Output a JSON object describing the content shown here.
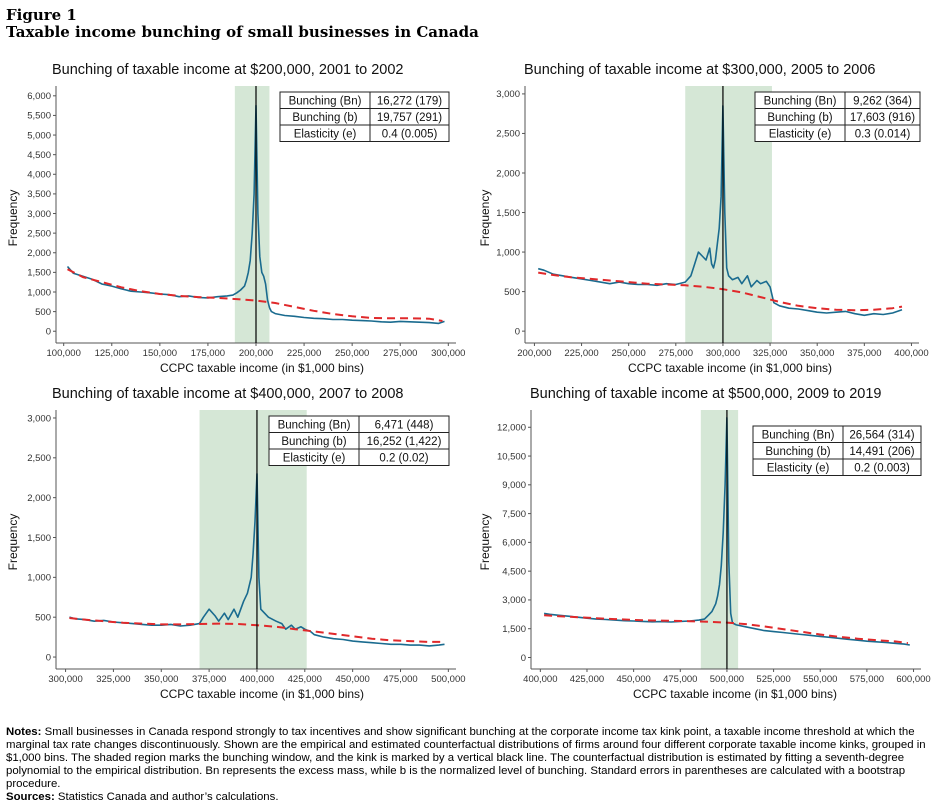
{
  "figure": {
    "label": "Figure 1",
    "title": "Taxable income bunching  of small businesses in Canada"
  },
  "notes": {
    "label": "Notes:",
    "text": "Small businesses in Canada respond strongly to tax incentives and show significant bunching at the corporate income tax kink point, a taxable income threshold at which the marginal tax rate changes discontinuously. Shown are the empirical and estimated counterfactual distributions of firms around four different corporate taxable income kinks, grouped in $1,000 bins. The shaded region marks the bunching window, and the kink is marked by a vertical black line. The counterfactual distribution is estimated by fitting a seventh-degree polynomial to the empirical distribution. Bn represents the excess mass, while b is the normalized level of bunching. Standard errors in parentheses are calculated with a bootstrap procedure."
  },
  "sources": {
    "label": "Sources:",
    "text": "Statistics Canada and author’s calculations."
  },
  "colors": {
    "empirical": "#1a6b8f",
    "counterfactual": "#e0292b",
    "window": "#d5e7d6",
    "kink": "#000000"
  },
  "chart_data": [
    {
      "type": "line",
      "title": "Bunching of taxable income at $200,000, 2001 to 2002",
      "xlabel": "CCPC taxable income (in $1,000 bins)",
      "ylabel": "Frequency",
      "xlim": [
        96000,
        304000
      ],
      "ylim": [
        -300,
        6250
      ],
      "xticks": [
        100000,
        125000,
        150000,
        175000,
        200000,
        225000,
        250000,
        275000,
        300000
      ],
      "xtick_labels": [
        "100,000",
        "125,000",
        "150,000",
        "175,000",
        "200,000",
        "225,000",
        "250,000",
        "275,000",
        "300,000"
      ],
      "yticks": [
        0,
        500,
        1000,
        1500,
        2000,
        2500,
        3000,
        3500,
        4000,
        4500,
        5000,
        5500,
        6000
      ],
      "ytick_labels": [
        "0",
        "500",
        "1,000",
        "1,500",
        "2,000",
        "2,500",
        "3,000",
        "3,500",
        "4,000",
        "4,500",
        "5,000",
        "5,500",
        "6,000"
      ],
      "kink": 200000,
      "window": [
        189000,
        207000
      ],
      "grid": false,
      "series": [
        {
          "style": "empirical",
          "x": [
            102000,
            105000,
            110000,
            115000,
            120000,
            125000,
            130000,
            135000,
            140000,
            145000,
            150000,
            155000,
            160000,
            165000,
            170000,
            175000,
            180000,
            185000,
            188000,
            190000,
            192000,
            194000,
            195000,
            196000,
            197000,
            198000,
            199000,
            200000,
            201000,
            202000,
            203000,
            204000,
            205000,
            206000,
            207000,
            208000,
            210000,
            215000,
            220000,
            225000,
            230000,
            235000,
            240000,
            245000,
            250000,
            255000,
            260000,
            265000,
            270000,
            275000,
            280000,
            285000,
            290000,
            295000,
            298000
          ],
          "y": [
            1650,
            1480,
            1400,
            1320,
            1200,
            1150,
            1080,
            1020,
            1000,
            980,
            950,
            930,
            880,
            900,
            860,
            850,
            880,
            900,
            920,
            980,
            1050,
            1150,
            1300,
            1500,
            1800,
            2500,
            3500,
            5750,
            3000,
            1900,
            1500,
            1400,
            1200,
            800,
            600,
            500,
            450,
            400,
            380,
            350,
            330,
            320,
            300,
            300,
            280,
            270,
            260,
            240,
            230,
            250,
            240,
            230,
            220,
            200,
            250
          ],
          "stroke": "#1a6b8f"
        },
        {
          "style": "counterfactual",
          "x": [
            102000,
            110000,
            120000,
            130000,
            140000,
            150000,
            160000,
            170000,
            180000,
            190000,
            200000,
            210000,
            220000,
            230000,
            240000,
            250000,
            260000,
            270000,
            280000,
            290000,
            297000
          ],
          "y": [
            1580,
            1380,
            1250,
            1120,
            1020,
            950,
            900,
            870,
            850,
            820,
            780,
            720,
            620,
            520,
            440,
            380,
            340,
            330,
            330,
            320,
            260
          ],
          "stroke": "#e0292b"
        }
      ],
      "table": [
        [
          "Bunching (Bn)",
          "16,272 (179)"
        ],
        [
          "Bunching (b)",
          "19,757 (291)"
        ],
        [
          "Elasticity (e)",
          "0.4 (0.005)"
        ]
      ]
    },
    {
      "type": "line",
      "title": "Bunching of taxable income at $300,000, 2005 to 2006",
      "xlabel": "CCPC taxable income (in $1,000 bins)",
      "ylabel": "Frequency",
      "xlim": [
        195000,
        404000
      ],
      "ylim": [
        -150,
        3100
      ],
      "xticks": [
        200000,
        225000,
        250000,
        275000,
        300000,
        325000,
        350000,
        375000,
        400000
      ],
      "xtick_labels": [
        "200,000",
        "225,000",
        "250,000",
        "275,000",
        "300,000",
        "325,000",
        "350,000",
        "375,000",
        "400,000"
      ],
      "yticks": [
        0,
        500,
        1000,
        1500,
        2000,
        2500,
        3000
      ],
      "ytick_labels": [
        "0",
        "500",
        "1,000",
        "1,500",
        "2,000",
        "2,500",
        "3,000"
      ],
      "kink": 300000,
      "window": [
        280000,
        326000
      ],
      "grid": false,
      "series": [
        {
          "style": "empirical",
          "x": [
            202000,
            205000,
            210000,
            215000,
            220000,
            225000,
            230000,
            235000,
            240000,
            245000,
            250000,
            255000,
            260000,
            265000,
            270000,
            275000,
            280000,
            283000,
            285000,
            287000,
            289000,
            291000,
            293000,
            294000,
            295000,
            296000,
            297000,
            298000,
            299000,
            300000,
            301000,
            302000,
            303000,
            305000,
            308000,
            310000,
            313000,
            315000,
            318000,
            320000,
            323000,
            325000,
            327000,
            330000,
            335000,
            340000,
            345000,
            350000,
            355000,
            360000,
            365000,
            370000,
            375000,
            380000,
            385000,
            390000,
            395000
          ],
          "y": [
            790,
            770,
            720,
            700,
            680,
            660,
            640,
            620,
            600,
            620,
            600,
            590,
            590,
            580,
            600,
            590,
            620,
            700,
            850,
            1000,
            950,
            900,
            1050,
            850,
            800,
            900,
            1100,
            1300,
            1700,
            2850,
            1500,
            800,
            700,
            650,
            680,
            600,
            700,
            560,
            640,
            600,
            630,
            560,
            360,
            320,
            290,
            280,
            260,
            240,
            230,
            240,
            250,
            220,
            200,
            220,
            210,
            230,
            270
          ],
          "stroke": "#1a6b8f"
        },
        {
          "style": "counterfactual",
          "x": [
            202000,
            210000,
            220000,
            230000,
            240000,
            250000,
            260000,
            270000,
            280000,
            290000,
            300000,
            310000,
            320000,
            330000,
            340000,
            350000,
            360000,
            370000,
            380000,
            390000,
            395000
          ],
          "y": [
            740,
            710,
            680,
            660,
            640,
            620,
            600,
            590,
            580,
            560,
            530,
            490,
            430,
            370,
            320,
            290,
            270,
            265,
            270,
            290,
            310
          ],
          "stroke": "#e0292b"
        }
      ],
      "table": [
        [
          "Bunching (Bn)",
          "9,262 (364)"
        ],
        [
          "Bunching (b)",
          "17,603 (916)"
        ],
        [
          "Elasticity (e)",
          "0.3 (0.014)"
        ]
      ]
    },
    {
      "type": "line",
      "title": "Bunching of taxable income at $400,000, 2007 to 2008",
      "xlabel": "CCPC taxable income (in $1,000 bins)",
      "ylabel": "Frequency",
      "xlim": [
        295000,
        504000
      ],
      "ylim": [
        -150,
        3100
      ],
      "xticks": [
        300000,
        325000,
        350000,
        375000,
        400000,
        425000,
        450000,
        475000,
        500000
      ],
      "xtick_labels": [
        "300,000",
        "325,000",
        "350,000",
        "375,000",
        "400,000",
        "425,000",
        "450,000",
        "475,000",
        "500,000"
      ],
      "yticks": [
        0,
        500,
        1000,
        1500,
        2000,
        2500,
        3000
      ],
      "ytick_labels": [
        "0",
        "500",
        "1,000",
        "1,500",
        "2,000",
        "2,500",
        "3,000"
      ],
      "kink": 400000,
      "window": [
        370000,
        426000
      ],
      "grid": false,
      "series": [
        {
          "style": "empirical",
          "x": [
            302000,
            305000,
            310000,
            315000,
            320000,
            325000,
            330000,
            335000,
            340000,
            345000,
            350000,
            355000,
            360000,
            365000,
            370000,
            372000,
            375000,
            378000,
            380000,
            383000,
            385000,
            388000,
            390000,
            393000,
            395000,
            397000,
            398000,
            399000,
            400000,
            401000,
            402000,
            404000,
            406000,
            410000,
            413000,
            415000,
            418000,
            420000,
            423000,
            425000,
            428000,
            430000,
            435000,
            440000,
            445000,
            450000,
            455000,
            460000,
            465000,
            470000,
            475000,
            480000,
            485000,
            490000,
            495000,
            498000
          ],
          "y": [
            500,
            480,
            470,
            450,
            460,
            440,
            430,
            420,
            410,
            400,
            400,
            410,
            390,
            400,
            420,
            500,
            600,
            520,
            450,
            550,
            470,
            600,
            500,
            700,
            800,
            1000,
            1300,
            1700,
            2300,
            1000,
            600,
            550,
            500,
            450,
            420,
            350,
            400,
            350,
            380,
            350,
            320,
            280,
            250,
            230,
            220,
            200,
            190,
            180,
            170,
            160,
            160,
            150,
            150,
            140,
            150,
            160
          ],
          "stroke": "#1a6b8f"
        },
        {
          "style": "counterfactual",
          "x": [
            302000,
            310000,
            320000,
            330000,
            340000,
            350000,
            360000,
            370000,
            380000,
            390000,
            400000,
            410000,
            420000,
            430000,
            440000,
            450000,
            460000,
            470000,
            480000,
            490000,
            497000
          ],
          "y": [
            490,
            470,
            450,
            430,
            420,
            410,
            410,
            415,
            420,
            415,
            400,
            380,
            350,
            320,
            290,
            260,
            230,
            210,
            200,
            190,
            190
          ],
          "stroke": "#e0292b"
        }
      ],
      "table": [
        [
          "Bunching (Bn)",
          "6,471 (448)"
        ],
        [
          "Bunching (b)",
          "16,252 (1,422)"
        ],
        [
          "Elasticity (e)",
          "0.2 (0.02)"
        ]
      ]
    },
    {
      "type": "line",
      "title": "Bunching of taxable income at $500,000, 2009 to 2019",
      "xlabel": "CCPC taxable income (in $1,000 bins)",
      "ylabel": "Frequency",
      "xlim": [
        395000,
        604000
      ],
      "ylim": [
        -600,
        12900
      ],
      "xticks": [
        400000,
        425000,
        450000,
        475000,
        500000,
        525000,
        550000,
        575000,
        600000
      ],
      "xtick_labels": [
        "400,000",
        "425,000",
        "450,000",
        "475,000",
        "500,000",
        "525,000",
        "550,000",
        "575,000",
        "600,000"
      ],
      "yticks": [
        0,
        1500,
        3000,
        4500,
        6000,
        7500,
        9000,
        10500,
        12000
      ],
      "ytick_labels": [
        "0",
        "1,500",
        "3,000",
        "4,500",
        "6,000",
        "7,500",
        "9,000",
        "10,500",
        "12,000"
      ],
      "kink": 500000,
      "window": [
        486000,
        506000
      ],
      "grid": false,
      "series": [
        {
          "style": "empirical",
          "x": [
            402000,
            405000,
            410000,
            415000,
            420000,
            425000,
            430000,
            435000,
            440000,
            445000,
            450000,
            455000,
            460000,
            465000,
            470000,
            475000,
            480000,
            485000,
            488000,
            490000,
            492000,
            494000,
            495000,
            496000,
            497000,
            498000,
            499000,
            500000,
            501000,
            502000,
            503000,
            505000,
            510000,
            515000,
            520000,
            525000,
            530000,
            535000,
            540000,
            545000,
            550000,
            555000,
            560000,
            565000,
            570000,
            575000,
            580000,
            585000,
            590000,
            595000,
            598000
          ],
          "y": [
            2300,
            2250,
            2200,
            2150,
            2100,
            2050,
            2000,
            1980,
            1950,
            1920,
            1900,
            1880,
            1860,
            1870,
            1850,
            1880,
            1900,
            1950,
            2000,
            2200,
            2400,
            2800,
            3200,
            3800,
            4800,
            6500,
            9000,
            12500,
            5000,
            2300,
            1800,
            1700,
            1600,
            1500,
            1400,
            1350,
            1300,
            1250,
            1200,
            1150,
            1100,
            1050,
            1000,
            950,
            900,
            850,
            820,
            780,
            740,
            700,
            650
          ],
          "stroke": "#1a6b8f"
        },
        {
          "style": "counterfactual",
          "x": [
            402000,
            410000,
            420000,
            430000,
            440000,
            450000,
            460000,
            470000,
            480000,
            490000,
            500000,
            510000,
            520000,
            530000,
            540000,
            550000,
            560000,
            570000,
            580000,
            590000,
            597000
          ],
          "y": [
            2200,
            2150,
            2100,
            2050,
            2000,
            1960,
            1930,
            1910,
            1890,
            1860,
            1820,
            1740,
            1620,
            1480,
            1340,
            1200,
            1080,
            980,
            900,
            840,
            750
          ],
          "stroke": "#e0292b"
        }
      ],
      "table": [
        [
          "Bunching (Bn)",
          "26,564 (314)"
        ],
        [
          "Bunching (b)",
          "14,491 (206)"
        ],
        [
          "Elasticity (e)",
          "0.2 (0.003)"
        ]
      ]
    }
  ]
}
